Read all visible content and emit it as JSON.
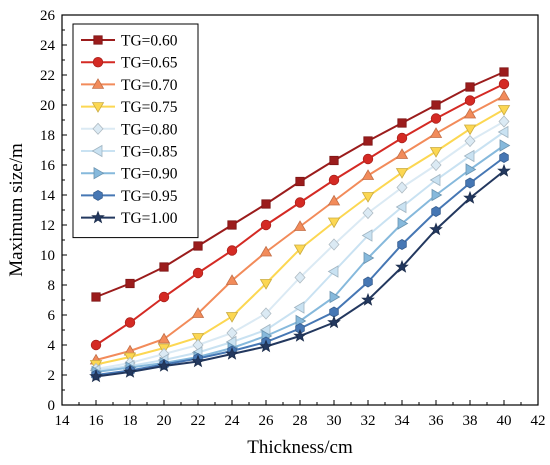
{
  "chart_data": {
    "type": "line",
    "title": "",
    "xlabel": "Thickness/cm",
    "ylabel": "Maximum size/m",
    "xlim": [
      14,
      42
    ],
    "ylim": [
      0,
      26
    ],
    "x_ticks": [
      14,
      16,
      18,
      20,
      22,
      24,
      26,
      28,
      30,
      32,
      34,
      36,
      38,
      40,
      42
    ],
    "y_ticks": [
      0,
      2,
      4,
      6,
      8,
      10,
      12,
      14,
      16,
      18,
      20,
      22,
      24,
      26
    ],
    "grid": false,
    "legend_position": "top-left",
    "x": [
      16,
      18,
      20,
      22,
      24,
      26,
      28,
      30,
      32,
      34,
      36,
      38,
      40
    ],
    "series": [
      {
        "name": "TG=0.60",
        "color": "#9b1c1c",
        "marker": "square",
        "values": [
          7.2,
          8.1,
          9.2,
          10.6,
          12.0,
          13.4,
          14.9,
          16.3,
          17.6,
          18.8,
          20.0,
          21.2,
          22.2
        ]
      },
      {
        "name": "TG=0.65",
        "color": "#d42a24",
        "marker": "circle",
        "values": [
          4.0,
          5.5,
          7.2,
          8.8,
          10.3,
          12.0,
          13.5,
          15.0,
          16.4,
          17.8,
          19.1,
          20.3,
          21.4
        ]
      },
      {
        "name": "TG=0.70",
        "color": "#f28b5a",
        "marker": "triangle-up",
        "values": [
          3.0,
          3.6,
          4.4,
          6.1,
          8.3,
          10.2,
          11.9,
          13.6,
          15.3,
          16.7,
          18.1,
          19.4,
          20.6
        ]
      },
      {
        "name": "TG=0.75",
        "color": "#fcd752",
        "marker": "triangle-down",
        "values": [
          2.7,
          3.2,
          3.8,
          4.5,
          5.9,
          8.1,
          10.4,
          12.2,
          13.9,
          15.5,
          16.9,
          18.4,
          19.7
        ]
      },
      {
        "name": "TG=0.80",
        "color": "#dbeaf4",
        "marker": "diamond",
        "values": [
          2.4,
          2.8,
          3.4,
          4.0,
          4.8,
          6.1,
          8.5,
          10.7,
          12.8,
          14.5,
          16.0,
          17.6,
          18.9
        ]
      },
      {
        "name": "TG=0.85",
        "color": "#c9e2f2",
        "marker": "triangle-left",
        "values": [
          2.3,
          2.6,
          3.0,
          3.5,
          4.2,
          5.0,
          6.5,
          8.9,
          11.3,
          13.2,
          15.0,
          16.6,
          18.2
        ]
      },
      {
        "name": "TG=0.90",
        "color": "#86b9dc",
        "marker": "triangle-right",
        "values": [
          2.2,
          2.5,
          2.8,
          3.2,
          3.8,
          4.6,
          5.6,
          7.2,
          9.8,
          12.1,
          14.0,
          15.7,
          17.3
        ]
      },
      {
        "name": "TG=0.95",
        "color": "#4677b4",
        "marker": "hexagon",
        "values": [
          2.0,
          2.3,
          2.7,
          3.1,
          3.6,
          4.2,
          5.1,
          6.2,
          8.2,
          10.7,
          12.9,
          14.8,
          16.5
        ]
      },
      {
        "name": "TG=1.00",
        "color": "#23385f",
        "marker": "star",
        "values": [
          1.9,
          2.2,
          2.6,
          2.9,
          3.4,
          3.9,
          4.6,
          5.5,
          7.0,
          9.2,
          11.7,
          13.8,
          15.6
        ]
      }
    ]
  }
}
